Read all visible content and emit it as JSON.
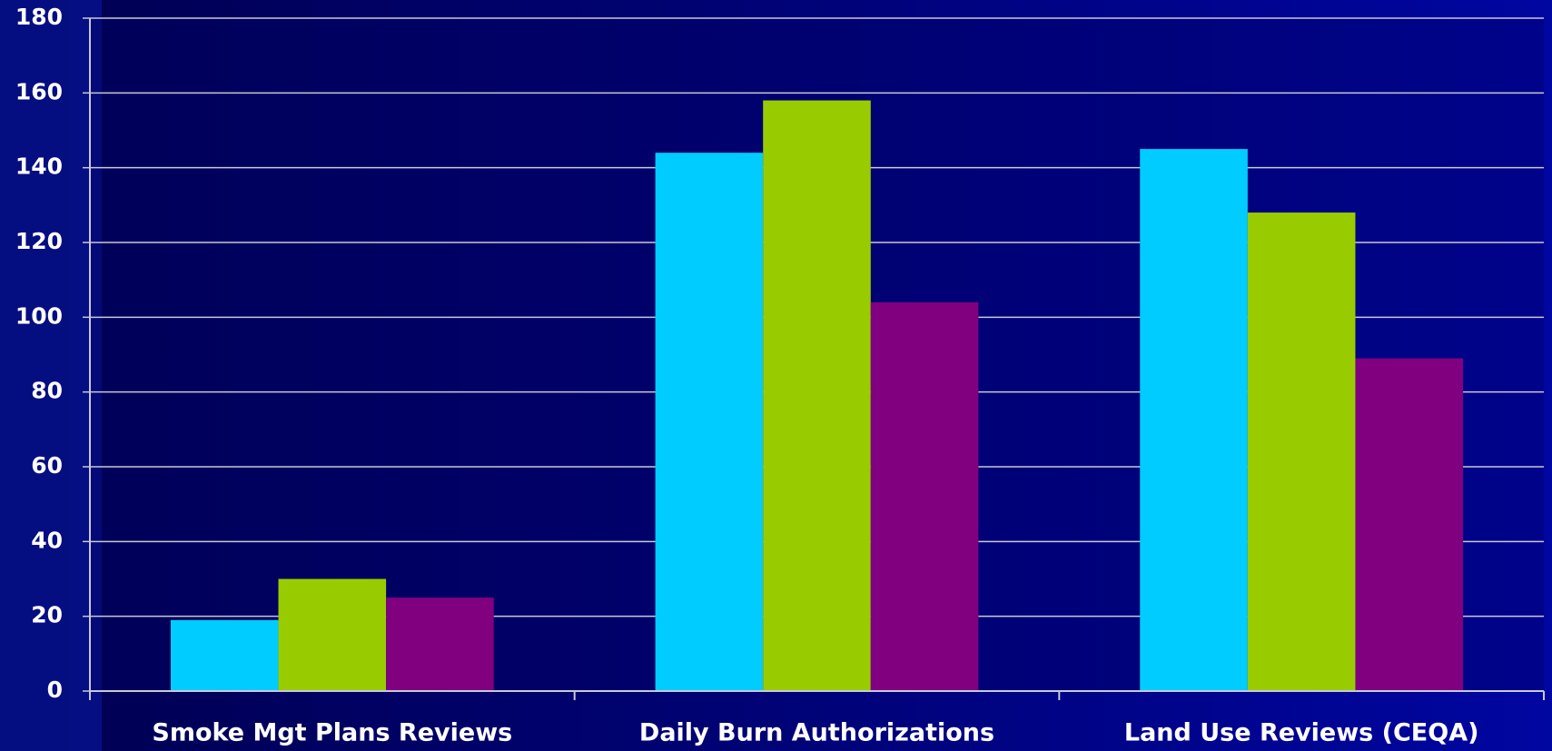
{
  "chart_data": {
    "type": "bar",
    "categories": [
      "Smoke Mgt Plans Reviews",
      "Daily Burn Authorizations",
      "Land Use Reviews (CEQA)"
    ],
    "series": [
      {
        "color": "#00ccff",
        "values": [
          19,
          144,
          145
        ]
      },
      {
        "color": "#99cc00",
        "values": [
          30,
          158,
          128
        ]
      },
      {
        "color": "#800080",
        "values": [
          25,
          104,
          89
        ]
      }
    ],
    "ylim": [
      0,
      180
    ],
    "yticks": [
      0,
      20,
      40,
      60,
      80,
      100,
      120,
      140,
      160,
      180
    ],
    "grid": true
  }
}
